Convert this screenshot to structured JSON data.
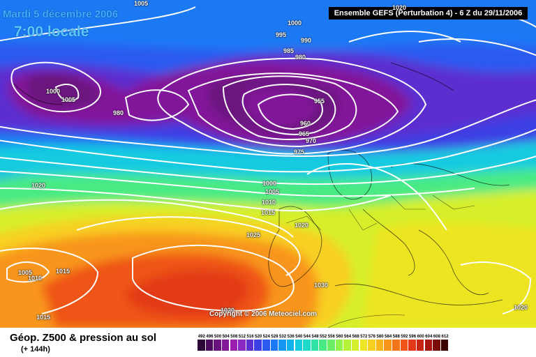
{
  "header": {
    "date": "Mardi 5 décembre 2006",
    "hour": "7:00 locale",
    "run": "Ensemble GEFS (Perturbation 4)  -  6 Z du 29/11/2006"
  },
  "copyright": "Copyright © 2006 Meteociel.com",
  "legend": {
    "title": "Géop. Z500 & pression au sol",
    "subtitle": "(+ 144h)",
    "scale_values": [
      "492",
      "496",
      "500",
      "504",
      "508",
      "512",
      "516",
      "520",
      "524",
      "528",
      "532",
      "536",
      "540",
      "544",
      "548",
      "552",
      "556",
      "560",
      "564",
      "568",
      "572",
      "576",
      "580",
      "584",
      "588",
      "592",
      "596",
      "600",
      "604",
      "608",
      "612"
    ],
    "scale_colors": [
      "#2c0638",
      "#4b0a5e",
      "#6a137e",
      "#82179a",
      "#9a1fb0",
      "#8a2ac2",
      "#5b2fd0",
      "#3c3fe4",
      "#2a5af0",
      "#1a79f4",
      "#1496f2",
      "#10b2ec",
      "#14cbe0",
      "#1ed9c8",
      "#2fe3a8",
      "#48ea84",
      "#6aef64",
      "#90f24a",
      "#b5f238",
      "#d6ef2c",
      "#eee524",
      "#f8d020",
      "#fab41c",
      "#f8951a",
      "#f47418",
      "#ef5518",
      "#e23a16",
      "#c82612",
      "#a8160e",
      "#7a0c0a",
      "#3a0404"
    ]
  },
  "isobars": [
    "1005",
    "1000",
    "995",
    "990",
    "985",
    "980",
    "1000",
    "1005",
    "980",
    "955",
    "960",
    "965",
    "970",
    "975",
    "1020",
    "1000",
    "1005",
    "1010",
    "1015",
    "1020",
    "1025",
    "1005",
    "1010",
    "1015",
    "1030",
    "1020",
    "1015",
    "1020",
    "1020"
  ]
}
